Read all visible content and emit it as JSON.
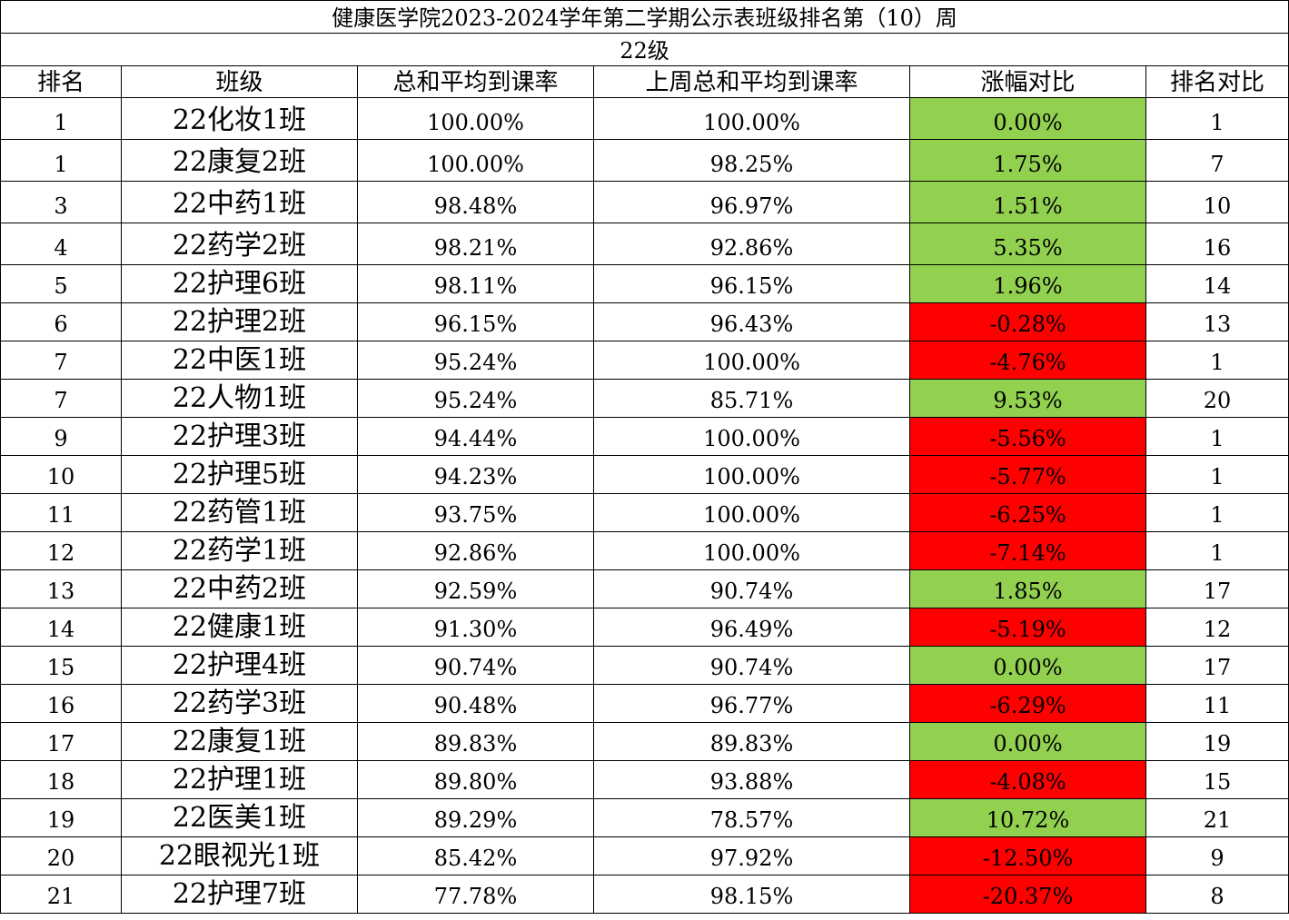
{
  "title": "健康医学院2023-2024学年第二学期公示表班级排名第（10）周",
  "grade": "22级",
  "headers": [
    "排名",
    "班级",
    "总和平均到课率",
    "上周总和平均到课率",
    "涨幅对比",
    "排名对比"
  ],
  "colors": {
    "increase": "#92d050",
    "decrease": "#ff0000"
  },
  "rows": [
    {
      "rank": "1",
      "class": "22化妆1班",
      "avg": "100.00%",
      "last_avg": "100.00%",
      "change": "0.00%",
      "trend": "up",
      "prev_rank": "1"
    },
    {
      "rank": "1",
      "class": "22康复2班",
      "avg": "100.00%",
      "last_avg": "98.25%",
      "change": "1.75%",
      "trend": "up",
      "prev_rank": "7"
    },
    {
      "rank": "3",
      "class": "22中药1班",
      "avg": "98.48%",
      "last_avg": "96.97%",
      "change": "1.51%",
      "trend": "up",
      "prev_rank": "10"
    },
    {
      "rank": "4",
      "class": "22药学2班",
      "avg": "98.21%",
      "last_avg": "92.86%",
      "change": "5.35%",
      "trend": "up",
      "prev_rank": "16"
    },
    {
      "rank": "5",
      "class": "22护理6班",
      "avg": "98.11%",
      "last_avg": "96.15%",
      "change": "1.96%",
      "trend": "up",
      "prev_rank": "14"
    },
    {
      "rank": "6",
      "class": "22护理2班",
      "avg": "96.15%",
      "last_avg": "96.43%",
      "change": "-0.28%",
      "trend": "down",
      "prev_rank": "13"
    },
    {
      "rank": "7",
      "class": "22中医1班",
      "avg": "95.24%",
      "last_avg": "100.00%",
      "change": "-4.76%",
      "trend": "down",
      "prev_rank": "1"
    },
    {
      "rank": "7",
      "class": "22人物1班",
      "avg": "95.24%",
      "last_avg": "85.71%",
      "change": "9.53%",
      "trend": "up",
      "prev_rank": "20"
    },
    {
      "rank": "9",
      "class": "22护理3班",
      "avg": "94.44%",
      "last_avg": "100.00%",
      "change": "-5.56%",
      "trend": "down",
      "prev_rank": "1"
    },
    {
      "rank": "10",
      "class": "22护理5班",
      "avg": "94.23%",
      "last_avg": "100.00%",
      "change": "-5.77%",
      "trend": "down",
      "prev_rank": "1"
    },
    {
      "rank": "11",
      "class": "22药管1班",
      "avg": "93.75%",
      "last_avg": "100.00%",
      "change": "-6.25%",
      "trend": "down",
      "prev_rank": "1"
    },
    {
      "rank": "12",
      "class": "22药学1班",
      "avg": "92.86%",
      "last_avg": "100.00%",
      "change": "-7.14%",
      "trend": "down",
      "prev_rank": "1"
    },
    {
      "rank": "13",
      "class": "22中药2班",
      "avg": "92.59%",
      "last_avg": "90.74%",
      "change": "1.85%",
      "trend": "up",
      "prev_rank": "17"
    },
    {
      "rank": "14",
      "class": "22健康1班",
      "avg": "91.30%",
      "last_avg": "96.49%",
      "change": "-5.19%",
      "trend": "down",
      "prev_rank": "12"
    },
    {
      "rank": "15",
      "class": "22护理4班",
      "avg": "90.74%",
      "last_avg": "90.74%",
      "change": "0.00%",
      "trend": "up",
      "prev_rank": "17"
    },
    {
      "rank": "16",
      "class": "22药学3班",
      "avg": "90.48%",
      "last_avg": "96.77%",
      "change": "-6.29%",
      "trend": "down",
      "prev_rank": "11"
    },
    {
      "rank": "17",
      "class": "22康复1班",
      "avg": "89.83%",
      "last_avg": "89.83%",
      "change": "0.00%",
      "trend": "up",
      "prev_rank": "19"
    },
    {
      "rank": "18",
      "class": "22护理1班",
      "avg": "89.80%",
      "last_avg": "93.88%",
      "change": "-4.08%",
      "trend": "down",
      "prev_rank": "15"
    },
    {
      "rank": "19",
      "class": "22医美1班",
      "avg": "89.29%",
      "last_avg": "78.57%",
      "change": "10.72%",
      "trend": "up",
      "prev_rank": "21"
    },
    {
      "rank": "20",
      "class": "22眼视光1班",
      "avg": "85.42%",
      "last_avg": "97.92%",
      "change": "-12.50%",
      "trend": "down",
      "prev_rank": "9"
    },
    {
      "rank": "21",
      "class": "22护理7班",
      "avg": "77.78%",
      "last_avg": "98.15%",
      "change": "-20.37%",
      "trend": "down",
      "prev_rank": "8"
    }
  ]
}
